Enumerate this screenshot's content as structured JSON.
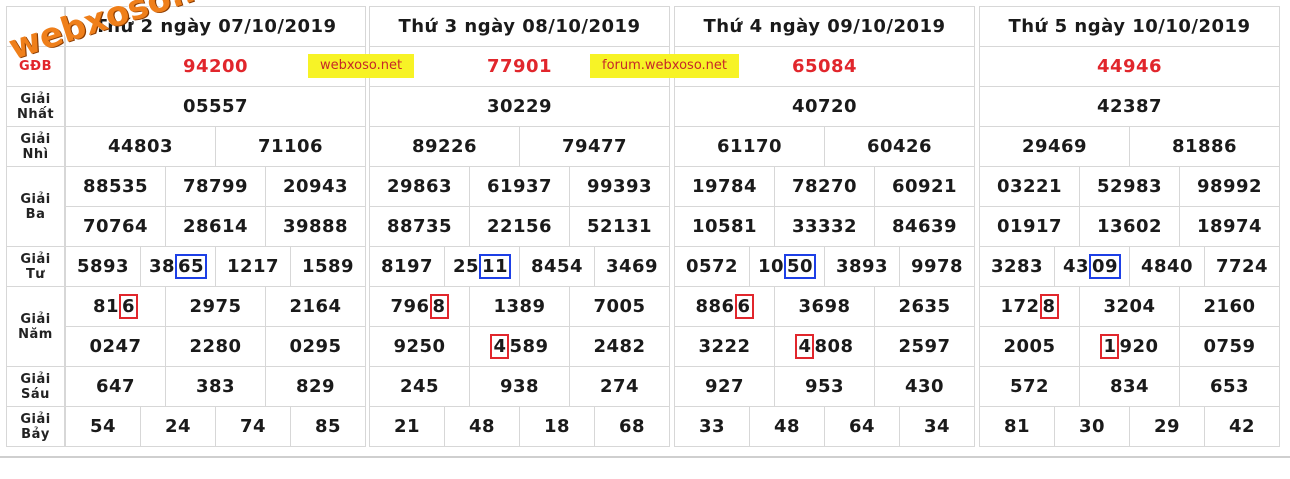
{
  "labels": {
    "gdb": "GĐB",
    "nhat": [
      "Giải",
      "Nhất"
    ],
    "nhi": [
      "Giải",
      "Nhì"
    ],
    "ba": [
      "Giải",
      "Ba"
    ],
    "tu": [
      "Giải",
      "Tư"
    ],
    "nam": [
      "Giải",
      "Năm"
    ],
    "sau": [
      "Giải",
      "Sáu"
    ],
    "bay": [
      "Giải",
      "Bảy"
    ]
  },
  "watermark": "webxoso.net",
  "tags": {
    "t1": "webxoso.net",
    "t2": "forum.webxoso.net"
  },
  "colors": {
    "special": "#e1262c",
    "highlight_blue": "#1d3fe6",
    "highlight_red": "#e1262c",
    "tag_bg": "#f7f326"
  },
  "days": [
    {
      "title": "Thứ 2 ngày 07/10/2019",
      "db": "94200",
      "nhat": "05557",
      "nhi": [
        "44803",
        "71106"
      ],
      "ba": [
        "88535",
        "78799",
        "20943",
        "70764",
        "28614",
        "39888"
      ],
      "tu": {
        "pre": "5893",
        "t2a": "38",
        "t2b": "65",
        "t3": "1217",
        "t4": "1589"
      },
      "nam": {
        "r1a": "81",
        "r1b": "1",
        "r1c": "6",
        "n2": "2975",
        "n3": "2164",
        "n4": "0247",
        "n5": "2280",
        "n6": "0295"
      },
      "sau": [
        "647",
        "383",
        "829"
      ],
      "bay": [
        "54",
        "24",
        "74",
        "85"
      ]
    },
    {
      "title": "Thứ 3 ngày 08/10/2019",
      "db": "77901",
      "nhat": "30229",
      "nhi": [
        "89226",
        "79477"
      ],
      "ba": [
        "29863",
        "61937",
        "99393",
        "88735",
        "22156",
        "52131"
      ],
      "tu": {
        "pre": "8197",
        "t2a": "25",
        "t2b": "11",
        "t3": "8454",
        "t4": "3469"
      },
      "nam": {
        "r1a": "796",
        "r1b": "8",
        "n2": "1389",
        "n3": "7005",
        "n4": "9250",
        "n5a": "4",
        "n5b": "589",
        "n6": "2482"
      },
      "sau": [
        "245",
        "938",
        "274"
      ],
      "bay": [
        "21",
        "48",
        "18",
        "68"
      ]
    },
    {
      "title": "Thứ 4 ngày 09/10/2019",
      "db": "65084",
      "nhat": "40720",
      "nhi": [
        "61170",
        "60426"
      ],
      "ba": [
        "19784",
        "78270",
        "60921",
        "10581",
        "33332",
        "84639"
      ],
      "tu": {
        "pre": "0572",
        "t2a": "10",
        "t2b": "50",
        "t3": "3893",
        "t4": "9978"
      },
      "nam": {
        "r1a": "886",
        "r1b": "6",
        "n2": "3698",
        "n3": "2635",
        "n4": "3222",
        "n5a": "4",
        "n5b": "808",
        "n6": "2597"
      },
      "sau": [
        "927",
        "953",
        "430"
      ],
      "bay": [
        "33",
        "48",
        "64",
        "34"
      ]
    },
    {
      "title": "Thứ 5 ngày 10/10/2019",
      "db": "44946",
      "nhat": "42387",
      "nhi": [
        "29469",
        "81886"
      ],
      "ba": [
        "03221",
        "52983",
        "98992",
        "01917",
        "13602",
        "18974"
      ],
      "tu": {
        "pre": "3283",
        "t2a": "43",
        "t2b": "09",
        "t3": "4840",
        "t4": "7724"
      },
      "nam": {
        "r1a": "172",
        "r1b": "8",
        "n2": "3204",
        "n3": "2160",
        "n4": "2005",
        "n5a": "1",
        "n5b": "920",
        "n6": "0759"
      },
      "sau": [
        "572",
        "834",
        "653"
      ],
      "bay": [
        "81",
        "30",
        "29",
        "42"
      ]
    }
  ]
}
